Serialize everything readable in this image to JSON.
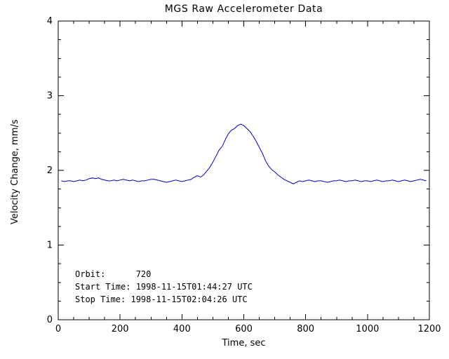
{
  "chart_data": {
    "type": "line",
    "title": "MGS Raw Accelerometer Data",
    "xlabel": "Time, sec",
    "ylabel": "Velocity Change, mm/s",
    "xlim": [
      0,
      1200
    ],
    "ylim": [
      0,
      4
    ],
    "x_major_ticks": [
      0,
      200,
      400,
      600,
      800,
      1000,
      1200
    ],
    "x_minor_step": 50,
    "y_major_ticks": [
      0,
      1,
      2,
      3,
      4
    ],
    "y_minor_step": 0.25,
    "line_color": "#0000cd",
    "grid": false,
    "legend": "none",
    "series": [
      {
        "name": "velocity_change_mm_per_s",
        "x_start": 10,
        "x_step": 10,
        "y": [
          1.86,
          1.85,
          1.86,
          1.86,
          1.85,
          1.86,
          1.87,
          1.86,
          1.87,
          1.89,
          1.9,
          1.89,
          1.9,
          1.88,
          1.87,
          1.86,
          1.86,
          1.87,
          1.86,
          1.87,
          1.88,
          1.87,
          1.86,
          1.87,
          1.86,
          1.85,
          1.86,
          1.86,
          1.87,
          1.88,
          1.88,
          1.87,
          1.86,
          1.85,
          1.84,
          1.85,
          1.86,
          1.87,
          1.86,
          1.85,
          1.86,
          1.87,
          1.88,
          1.91,
          1.93,
          1.91,
          1.94,
          1.99,
          2.04,
          2.11,
          2.19,
          2.27,
          2.32,
          2.41,
          2.49,
          2.54,
          2.56,
          2.6,
          2.62,
          2.6,
          2.56,
          2.52,
          2.46,
          2.39,
          2.31,
          2.23,
          2.13,
          2.06,
          2.01,
          1.98,
          1.94,
          1.91,
          1.88,
          1.86,
          1.84,
          1.82,
          1.84,
          1.86,
          1.85,
          1.86,
          1.87,
          1.86,
          1.85,
          1.86,
          1.86,
          1.85,
          1.84,
          1.85,
          1.86,
          1.86,
          1.87,
          1.86,
          1.85,
          1.86,
          1.86,
          1.87,
          1.86,
          1.85,
          1.86,
          1.86,
          1.85,
          1.86,
          1.87,
          1.86,
          1.85,
          1.86,
          1.86,
          1.87,
          1.86,
          1.85,
          1.86,
          1.87,
          1.86,
          1.85,
          1.86,
          1.87,
          1.88,
          1.87,
          1.86
        ]
      }
    ],
    "annotations": [
      {
        "text": "Orbit:      720",
        "anchor": "lower-left"
      },
      {
        "text": "Start Time: 1998-11-15T01:44:27 UTC",
        "anchor": "lower-left"
      },
      {
        "text": "Stop Time: 1998-11-15T02:04:26 UTC",
        "anchor": "lower-left"
      }
    ]
  }
}
